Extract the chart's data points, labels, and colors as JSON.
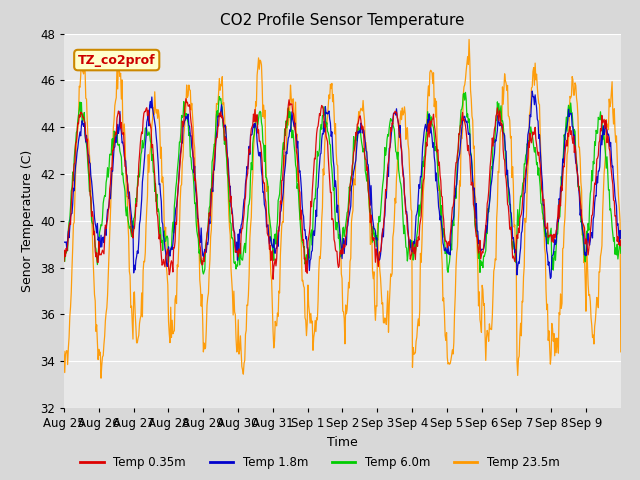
{
  "title": "CO2 Profile Sensor Temperature",
  "xlabel": "Time",
  "ylabel": "Senor Temperature (C)",
  "ylim": [
    32,
    48
  ],
  "fig_facecolor": "#d8d8d8",
  "plot_bg_color": "#e8e8e8",
  "legend_label": "TZ_co2prof",
  "legend_bg": "#ffffcc",
  "legend_edge": "#cc8800",
  "series_labels": [
    "Temp 0.35m",
    "Temp 1.8m",
    "Temp 6.0m",
    "Temp 23.5m"
  ],
  "series_colors": [
    "#dd0000",
    "#0000cc",
    "#00cc00",
    "#ff9900"
  ],
  "xtick_labels": [
    "Aug 25",
    "Aug 26",
    "Aug 27",
    "Aug 28",
    "Aug 29",
    "Aug 30",
    "Aug 31",
    "Sep 1",
    "Sep 2",
    "Sep 3",
    "Sep 4",
    "Sep 5",
    "Sep 6",
    "Sep 7",
    "Sep 8",
    "Sep 9"
  ],
  "n_days": 16,
  "samples_per_day": 48
}
